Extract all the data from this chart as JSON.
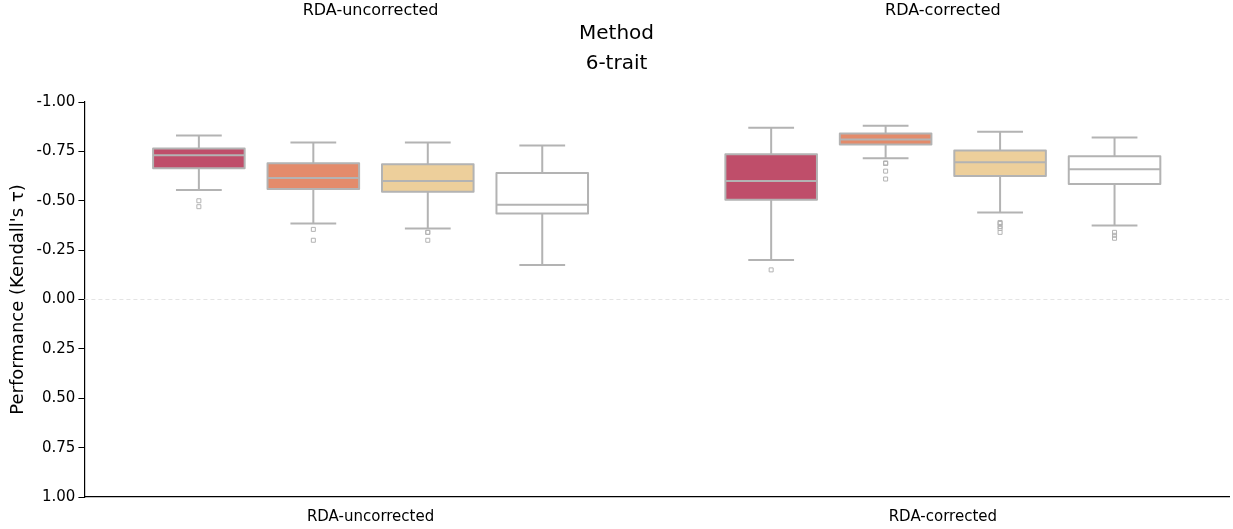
{
  "chart_data": {
    "type": "box",
    "title": "Method",
    "subtitle": "6-trait",
    "ylabel": "Performance (Kendall's τ)",
    "annotations": [
      "RDA-uncorrected",
      "RDA-corrected"
    ],
    "categories": [
      "RDA-uncorrected",
      "RDA-corrected"
    ],
    "ylim": [
      1,
      -1
    ],
    "yticks": [
      {
        "value": -1,
        "label": "-1.00"
      },
      {
        "value": -0.75,
        "label": "-0.75"
      },
      {
        "value": -0.5,
        "label": "-0.50"
      },
      {
        "value": -0.25,
        "label": "-0.25"
      },
      {
        "value": 0,
        "label": "0.00"
      },
      {
        "value": 0.25,
        "label": "0.25"
      },
      {
        "value": 0.5,
        "label": "0.50"
      },
      {
        "value": 0.75,
        "label": "0.75"
      },
      {
        "value": 1,
        "label": "1.00"
      }
    ],
    "grid": false,
    "legend": false,
    "ref_lines": [
      {
        "axis": "y",
        "value": 0,
        "color": "#dddddd",
        "line_style": "dashed"
      }
    ],
    "series": [
      {
        "color": "#bf4e6a",
        "boxes": [
          {
            "low": -0.83,
            "q1": -0.765,
            "median": -0.73,
            "q3": -0.665,
            "high": -0.555,
            "outliers": [
              -0.5,
              -0.47
            ]
          },
          {
            "low": -0.87,
            "q1": -0.735,
            "median": -0.6,
            "q3": -0.505,
            "high": -0.2,
            "outliers": [
              -0.15
            ]
          }
        ]
      },
      {
        "color": "#e38b6b",
        "boxes": [
          {
            "low": -0.795,
            "q1": -0.69,
            "median": -0.615,
            "q3": -0.56,
            "high": -0.385,
            "outliers": [
              -0.355,
              -0.3
            ]
          },
          {
            "low": -0.88,
            "q1": -0.84,
            "median": -0.81,
            "q3": -0.785,
            "high": -0.715,
            "outliers": [
              -0.69,
              -0.69,
              -0.69,
              -0.65,
              -0.61
            ]
          }
        ]
      },
      {
        "color": "#edcf9b",
        "boxes": [
          {
            "low": -0.795,
            "q1": -0.685,
            "median": -0.6,
            "q3": -0.545,
            "high": -0.36,
            "outliers": [
              -0.34,
              -0.34,
              -0.3
            ]
          },
          {
            "low": -0.85,
            "q1": -0.755,
            "median": -0.695,
            "q3": -0.625,
            "high": -0.44,
            "outliers": [
              -0.39,
              -0.385,
              -0.37,
              -0.36,
              -0.34
            ]
          }
        ]
      },
      {
        "color": "#ffffff",
        "boxes": [
          {
            "low": -0.78,
            "q1": -0.64,
            "median": -0.48,
            "q3": -0.435,
            "high": -0.175
          },
          {
            "low": -0.82,
            "q1": -0.725,
            "median": -0.66,
            "q3": -0.585,
            "high": -0.375,
            "outliers": [
              -0.34,
              -0.325,
              -0.31
            ]
          }
        ]
      }
    ]
  }
}
